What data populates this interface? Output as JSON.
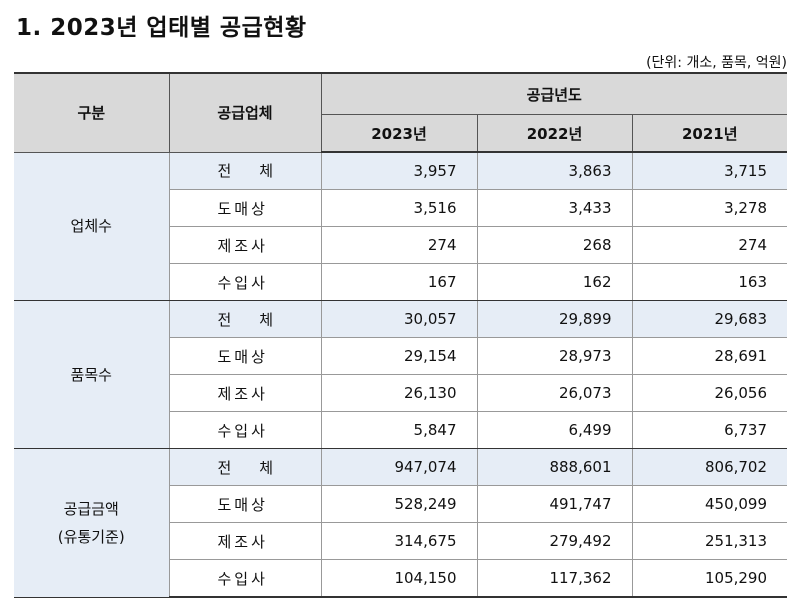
{
  "title": "1. 2023년 업태별 공급현황",
  "unit_note": "(단위: 개소, 품목, 억원)",
  "headers": {
    "category": "구분",
    "supplier": "공급업체",
    "years_group": "공급년도",
    "years": [
      "2023년",
      "2022년",
      "2021년"
    ]
  },
  "groups": [
    {
      "label_lines": [
        "업체수"
      ],
      "rows": [
        {
          "type": "전체",
          "values": [
            "3,957",
            "3,863",
            "3,715"
          ]
        },
        {
          "type": "도매상",
          "values": [
            "3,516",
            "3,433",
            "3,278"
          ]
        },
        {
          "type": "제조사",
          "values": [
            "274",
            "268",
            "274"
          ]
        },
        {
          "type": "수입사",
          "values": [
            "167",
            "162",
            "163"
          ]
        }
      ]
    },
    {
      "label_lines": [
        "품목수"
      ],
      "rows": [
        {
          "type": "전체",
          "values": [
            "30,057",
            "29,899",
            "29,683"
          ]
        },
        {
          "type": "도매상",
          "values": [
            "29,154",
            "28,973",
            "28,691"
          ]
        },
        {
          "type": "제조사",
          "values": [
            "26,130",
            "26,073",
            "26,056"
          ]
        },
        {
          "type": "수입사",
          "values": [
            "5,847",
            "6,499",
            "6,737"
          ]
        }
      ]
    },
    {
      "label_lines": [
        "공급금액",
        "(유통기준)"
      ],
      "rows": [
        {
          "type": "전체",
          "values": [
            "947,074",
            "888,601",
            "806,702"
          ]
        },
        {
          "type": "도매상",
          "values": [
            "528,249",
            "491,747",
            "450,099"
          ]
        },
        {
          "type": "제조사",
          "values": [
            "314,675",
            "279,492",
            "251,313"
          ]
        },
        {
          "type": "수입사",
          "values": [
            "104,150",
            "117,362",
            "105,290"
          ]
        }
      ]
    }
  ],
  "colors": {
    "header_bg": "#d9d9d9",
    "total_row_bg": "#e6edf6"
  }
}
